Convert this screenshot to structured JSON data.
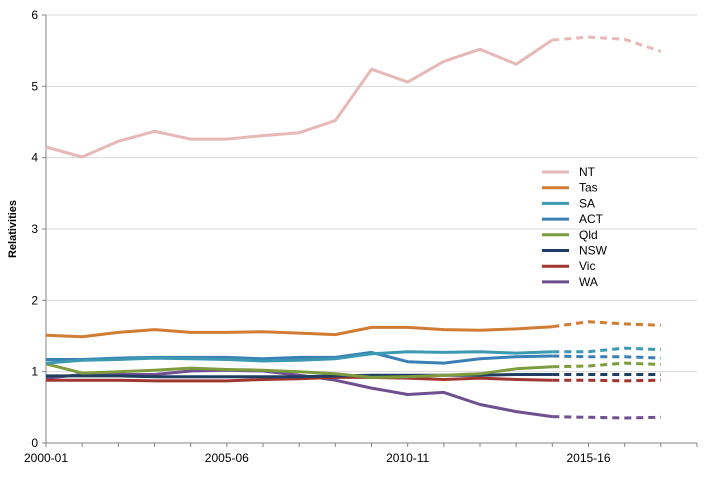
{
  "chart_data": {
    "type": "line",
    "title": "",
    "xlabel": "",
    "ylabel": "Relativities",
    "x": [
      "2000-01",
      "2001-02",
      "2002-03",
      "2003-04",
      "2004-05",
      "2005-06",
      "2006-07",
      "2007-08",
      "2008-09",
      "2009-10",
      "2010-11",
      "2011-12",
      "2012-13",
      "2013-14",
      "2014-15",
      "2015-16",
      "2016-17",
      "2017-18"
    ],
    "x_tick_labels": [
      "2000-01",
      "2005-06",
      "2010-11",
      "2015-16"
    ],
    "ylim": [
      0,
      6
    ],
    "y_ticks": [
      "0",
      "1",
      "2",
      "3",
      "4",
      "5",
      "6"
    ],
    "grid": "horizontal",
    "legend_position": "right",
    "projection_from": "2014-15",
    "series": [
      {
        "name": "NT",
        "color": "#e6b9b8",
        "values": [
          4.15,
          4.01,
          4.23,
          4.37,
          4.26,
          4.26,
          4.31,
          4.35,
          4.52,
          5.24,
          5.06,
          5.35,
          5.52,
          5.31,
          5.65,
          5.69,
          5.66,
          5.49
        ]
      },
      {
        "name": "Tas",
        "color": "#d07c33",
        "values": [
          1.51,
          1.49,
          1.55,
          1.59,
          1.55,
          1.55,
          1.56,
          1.54,
          1.52,
          1.62,
          1.62,
          1.59,
          1.58,
          1.6,
          1.63,
          1.7,
          1.67,
          1.65
        ]
      },
      {
        "name": "SA",
        "color": "#3b9ab2",
        "values": [
          1.12,
          1.16,
          1.17,
          1.19,
          1.18,
          1.17,
          1.15,
          1.16,
          1.18,
          1.25,
          1.28,
          1.27,
          1.28,
          1.26,
          1.28,
          1.28,
          1.33,
          1.31
        ]
      },
      {
        "name": "ACT",
        "color": "#3a80b4",
        "values": [
          1.17,
          1.17,
          1.19,
          1.2,
          1.2,
          1.2,
          1.18,
          1.2,
          1.2,
          1.27,
          1.14,
          1.12,
          1.18,
          1.21,
          1.22,
          1.21,
          1.21,
          1.19
        ]
      },
      {
        "name": "Qld",
        "color": "#7e9c3d",
        "values": [
          1.11,
          0.98,
          1.0,
          1.02,
          1.05,
          1.03,
          1.02,
          1.0,
          0.97,
          0.92,
          0.93,
          0.95,
          0.97,
          1.04,
          1.07,
          1.08,
          1.12,
          1.1
        ]
      },
      {
        "name": "NSW",
        "color": "#1f3e62",
        "values": [
          0.94,
          0.94,
          0.94,
          0.93,
          0.93,
          0.93,
          0.93,
          0.93,
          0.94,
          0.95,
          0.95,
          0.95,
          0.95,
          0.96,
          0.96,
          0.96,
          0.96,
          0.96
        ]
      },
      {
        "name": "Vic",
        "color": "#a13530",
        "values": [
          0.88,
          0.88,
          0.88,
          0.87,
          0.87,
          0.87,
          0.89,
          0.9,
          0.92,
          0.92,
          0.91,
          0.89,
          0.91,
          0.89,
          0.88,
          0.88,
          0.87,
          0.88
        ]
      },
      {
        "name": "WA",
        "color": "#6f4f8f",
        "values": [
          0.91,
          0.96,
          0.96,
          0.96,
          1.01,
          1.02,
          1.01,
          0.95,
          0.88,
          0.77,
          0.68,
          0.71,
          0.54,
          0.44,
          0.37,
          0.36,
          0.35,
          0.36
        ]
      }
    ]
  }
}
